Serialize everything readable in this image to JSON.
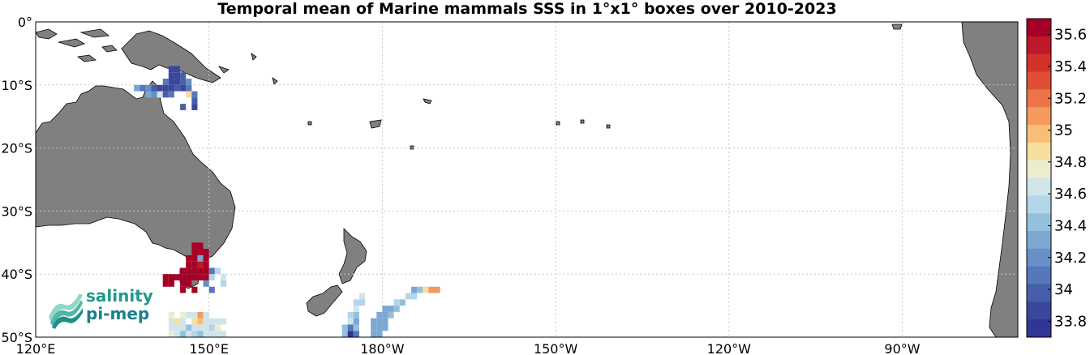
{
  "title": "Temporal mean of Marine mammals SSS in 1°x1° boxes over 2010-2023",
  "map": {
    "extent": {
      "lon_min": 120,
      "lon_max": 290,
      "lat_min": -50,
      "lat_max": 0
    },
    "lat_ticks": [
      {
        "lat": 0,
        "label": "0°"
      },
      {
        "lat": -10,
        "label": "10°S"
      },
      {
        "lat": -20,
        "label": "20°S"
      },
      {
        "lat": -30,
        "label": "30°S"
      },
      {
        "lat": -40,
        "label": "40°S"
      },
      {
        "lat": -50,
        "label": "50°S"
      }
    ],
    "lon_ticks": [
      {
        "lon": 120,
        "label": "120°E"
      },
      {
        "lon": 150,
        "label": "150°E"
      },
      {
        "lon": 180,
        "label": "180°W"
      },
      {
        "lon": 210,
        "label": "150°W"
      },
      {
        "lon": 240,
        "label": "120°W"
      },
      {
        "lon": 270,
        "label": "90°W"
      }
    ],
    "grid": true,
    "land_color": "#808080",
    "ocean_color": "#ffffff"
  },
  "colorbar": {
    "min": 33.7,
    "max": 35.7,
    "tick_labels": [
      "35.6",
      "35.4",
      "35.2",
      "35",
      "34.8",
      "34.6",
      "34.4",
      "34.2",
      "34",
      "33.8"
    ],
    "tick_values": [
      35.6,
      35.4,
      35.2,
      35.0,
      34.8,
      34.6,
      34.4,
      34.2,
      34.0,
      33.8
    ],
    "colors": [
      "#a50026",
      "#be1829",
      "#d3322b",
      "#e04f33",
      "#ec7448",
      "#f39a5c",
      "#f8be75",
      "#f6dea0",
      "#ececcf",
      "#cfe5ea",
      "#b3d6e8",
      "#94c0de",
      "#7ca7d3",
      "#6890c7",
      "#5677b8",
      "#475fa9",
      "#3a479c",
      "#313695"
    ]
  },
  "sss_boxes": [
    {
      "lon": 143,
      "lat": -7,
      "value": 33.9
    },
    {
      "lon": 144,
      "lat": -7,
      "value": 33.9
    },
    {
      "lon": 143,
      "lat": -8,
      "value": 33.9
    },
    {
      "lon": 144,
      "lat": -8,
      "value": 33.9
    },
    {
      "lon": 145,
      "lat": -8,
      "value": 34.0
    },
    {
      "lon": 142,
      "lat": -9,
      "value": 34.1
    },
    {
      "lon": 143,
      "lat": -9,
      "value": 33.9
    },
    {
      "lon": 144,
      "lat": -9,
      "value": 33.9
    },
    {
      "lon": 145,
      "lat": -9,
      "value": 34.0
    },
    {
      "lon": 146,
      "lat": -9,
      "value": 34.2
    },
    {
      "lon": 137,
      "lat": -10,
      "value": 34.3
    },
    {
      "lon": 138,
      "lat": -10,
      "value": 34.1
    },
    {
      "lon": 139,
      "lat": -10,
      "value": 34.2
    },
    {
      "lon": 140,
      "lat": -10,
      "value": 34.0
    },
    {
      "lon": 141,
      "lat": -10,
      "value": 33.9
    },
    {
      "lon": 142,
      "lat": -10,
      "value": 33.9
    },
    {
      "lon": 143,
      "lat": -10,
      "value": 33.9
    },
    {
      "lon": 144,
      "lat": -10,
      "value": 34.0
    },
    {
      "lon": 145,
      "lat": -10,
      "value": 33.9
    },
    {
      "lon": 146,
      "lat": -10,
      "value": 34.1
    },
    {
      "lon": 139,
      "lat": -11,
      "value": 34.3
    },
    {
      "lon": 140,
      "lat": -11,
      "value": 34.2
    },
    {
      "lon": 141,
      "lat": -11,
      "value": 34.6
    },
    {
      "lon": 142,
      "lat": -11,
      "value": 34.0
    },
    {
      "lon": 143,
      "lat": -11,
      "value": 34.1
    },
    {
      "lon": 146,
      "lat": -11,
      "value": 34.9
    },
    {
      "lon": 147,
      "lat": -11,
      "value": 34.1
    },
    {
      "lon": 147,
      "lat": -12,
      "value": 34.0
    },
    {
      "lon": 147,
      "lat": -13,
      "value": 33.9
    },
    {
      "lon": 145,
      "lat": -13,
      "value": 34.0
    },
    {
      "lon": 147,
      "lat": -35,
      "value": 35.6
    },
    {
      "lon": 148,
      "lat": -35,
      "value": 35.6
    },
    {
      "lon": 147,
      "lat": -36,
      "value": 35.6
    },
    {
      "lon": 148,
      "lat": -36,
      "value": 35.6
    },
    {
      "lon": 149,
      "lat": -36,
      "value": 35.6
    },
    {
      "lon": 146,
      "lat": -37,
      "value": 35.6
    },
    {
      "lon": 147,
      "lat": -37,
      "value": 35.6
    },
    {
      "lon": 148,
      "lat": -37,
      "value": 34.3
    },
    {
      "lon": 149,
      "lat": -37,
      "value": 35.6
    },
    {
      "lon": 146,
      "lat": -38,
      "value": 35.6
    },
    {
      "lon": 147,
      "lat": -38,
      "value": 35.6
    },
    {
      "lon": 148,
      "lat": -38,
      "value": 35.5
    },
    {
      "lon": 149,
      "lat": -38,
      "value": 35.6
    },
    {
      "lon": 145,
      "lat": -39,
      "value": 35.6
    },
    {
      "lon": 146,
      "lat": -39,
      "value": 35.6
    },
    {
      "lon": 147,
      "lat": -39,
      "value": 35.6
    },
    {
      "lon": 148,
      "lat": -39,
      "value": 35.6
    },
    {
      "lon": 149,
      "lat": -39,
      "value": 35.6
    },
    {
      "lon": 150,
      "lat": -39,
      "value": 34.1
    },
    {
      "lon": 151,
      "lat": -39,
      "value": 34.5
    },
    {
      "lon": 142,
      "lat": -40,
      "value": 35.6
    },
    {
      "lon": 143,
      "lat": -40,
      "value": 35.6
    },
    {
      "lon": 144,
      "lat": -40,
      "value": 35.6
    },
    {
      "lon": 145,
      "lat": -40,
      "value": 35.6
    },
    {
      "lon": 146,
      "lat": -40,
      "value": 35.6
    },
    {
      "lon": 147,
      "lat": -40,
      "value": 35.6
    },
    {
      "lon": 148,
      "lat": -40,
      "value": 35.6
    },
    {
      "lon": 149,
      "lat": -40,
      "value": 35.6
    },
    {
      "lon": 150,
      "lat": -40,
      "value": 34.5
    },
    {
      "lon": 152,
      "lat": -40,
      "value": 34.6
    },
    {
      "lon": 142,
      "lat": -41,
      "value": 35.6
    },
    {
      "lon": 143,
      "lat": -41,
      "value": 35.6
    },
    {
      "lon": 145,
      "lat": -41,
      "value": 35.6
    },
    {
      "lon": 146,
      "lat": -41,
      "value": 35.6
    },
    {
      "lon": 149,
      "lat": -41,
      "value": 34.2
    },
    {
      "lon": 152,
      "lat": -41,
      "value": 34.5
    },
    {
      "lon": 145,
      "lat": -42,
      "value": 35.6
    },
    {
      "lon": 147,
      "lat": -42,
      "value": 35.6
    },
    {
      "lon": 150,
      "lat": -42,
      "value": 34.1
    },
    {
      "lon": 143,
      "lat": -46,
      "value": 34.7
    },
    {
      "lon": 145,
      "lat": -46,
      "value": 34.7
    },
    {
      "lon": 146,
      "lat": -46,
      "value": 34.6
    },
    {
      "lon": 147,
      "lat": -46,
      "value": 34.6
    },
    {
      "lon": 148,
      "lat": -46,
      "value": 35.1
    },
    {
      "lon": 149,
      "lat": -46,
      "value": 34.6
    },
    {
      "lon": 143,
      "lat": -47,
      "value": 34.6
    },
    {
      "lon": 144,
      "lat": -47,
      "value": 34.9
    },
    {
      "lon": 145,
      "lat": -47,
      "value": 34.6
    },
    {
      "lon": 147,
      "lat": -47,
      "value": 34.9
    },
    {
      "lon": 148,
      "lat": -47,
      "value": 35.0
    },
    {
      "lon": 149,
      "lat": -47,
      "value": 34.6
    },
    {
      "lon": 150,
      "lat": -47,
      "value": 34.6
    },
    {
      "lon": 151,
      "lat": -47,
      "value": 34.6
    },
    {
      "lon": 152,
      "lat": -47,
      "value": 34.6
    },
    {
      "lon": 143,
      "lat": -48,
      "value": 34.6
    },
    {
      "lon": 144,
      "lat": -48,
      "value": 34.6
    },
    {
      "lon": 145,
      "lat": -48,
      "value": 34.6
    },
    {
      "lon": 146,
      "lat": -48,
      "value": 34.4
    },
    {
      "lon": 147,
      "lat": -48,
      "value": 34.6
    },
    {
      "lon": 148,
      "lat": -48,
      "value": 34.6
    },
    {
      "lon": 149,
      "lat": -48,
      "value": 34.6
    },
    {
      "lon": 150,
      "lat": -48,
      "value": 34.5
    },
    {
      "lon": 151,
      "lat": -48,
      "value": 34.8
    },
    {
      "lon": 143,
      "lat": -49,
      "value": 34.7
    },
    {
      "lon": 144,
      "lat": -49,
      "value": 34.6
    },
    {
      "lon": 145,
      "lat": -49,
      "value": 34.4
    },
    {
      "lon": 146,
      "lat": -49,
      "value": 34.6
    },
    {
      "lon": 147,
      "lat": -49,
      "value": 34.5
    },
    {
      "lon": 148,
      "lat": -49,
      "value": 34.4
    },
    {
      "lon": 149,
      "lat": -49,
      "value": 34.6
    },
    {
      "lon": 150,
      "lat": -49,
      "value": 34.6
    },
    {
      "lon": 151,
      "lat": -49,
      "value": 34.6
    },
    {
      "lon": 152,
      "lat": -49,
      "value": 34.6
    },
    {
      "lon": 174,
      "lat": -46,
      "value": 34.5
    },
    {
      "lon": 175,
      "lat": -46,
      "value": 34.4
    },
    {
      "lon": 174,
      "lat": -47,
      "value": 34.6
    },
    {
      "lon": 175,
      "lat": -47,
      "value": 34.3
    },
    {
      "lon": 173,
      "lat": -48,
      "value": 34.4
    },
    {
      "lon": 174,
      "lat": -48,
      "value": 34.1
    },
    {
      "lon": 175,
      "lat": -48,
      "value": 34.4
    },
    {
      "lon": 173,
      "lat": -49,
      "value": 34.4
    },
    {
      "lon": 174,
      "lat": -49,
      "value": 33.8
    },
    {
      "lon": 175,
      "lat": -49,
      "value": 34.1
    },
    {
      "lon": 176,
      "lat": -43,
      "value": 34.6
    },
    {
      "lon": 175,
      "lat": -44,
      "value": 34.5
    },
    {
      "lon": 176,
      "lat": -44,
      "value": 34.5
    },
    {
      "lon": 175,
      "lat": -45,
      "value": 34.6
    },
    {
      "lon": 182,
      "lat": -44,
      "value": 34.5
    },
    {
      "lon": 183,
      "lat": -44,
      "value": 34.4
    },
    {
      "lon": 184,
      "lat": -43,
      "value": 34.5
    },
    {
      "lon": 185,
      "lat": -43,
      "value": 34.5
    },
    {
      "lon": 185,
      "lat": -42,
      "value": 34.3
    },
    {
      "lon": 186,
      "lat": -42,
      "value": 34.4
    },
    {
      "lon": 187,
      "lat": -42,
      "value": 34.9
    },
    {
      "lon": 188,
      "lat": -42,
      "value": 35.1
    },
    {
      "lon": 189,
      "lat": -42,
      "value": 35.1
    },
    {
      "lon": 180,
      "lat": -45,
      "value": 34.3
    },
    {
      "lon": 181,
      "lat": -45,
      "value": 34.3
    },
    {
      "lon": 182,
      "lat": -45,
      "value": 34.4
    },
    {
      "lon": 179,
      "lat": -46,
      "value": 34.3
    },
    {
      "lon": 180,
      "lat": -46,
      "value": 34.3
    },
    {
      "lon": 181,
      "lat": -46,
      "value": 34.4
    },
    {
      "lon": 178,
      "lat": -47,
      "value": 34.3
    },
    {
      "lon": 179,
      "lat": -47,
      "value": 34.3
    },
    {
      "lon": 180,
      "lat": -47,
      "value": 34.3
    },
    {
      "lon": 178,
      "lat": -48,
      "value": 34.3
    },
    {
      "lon": 179,
      "lat": -48,
      "value": 34.3
    },
    {
      "lon": 180,
      "lat": -48,
      "value": 34.3
    },
    {
      "lon": 178,
      "lat": -49,
      "value": 34.3
    },
    {
      "lon": 179,
      "lat": -49,
      "value": 34.3
    }
  ],
  "logo": {
    "line1": "salinity",
    "line2": "pi-mep"
  }
}
